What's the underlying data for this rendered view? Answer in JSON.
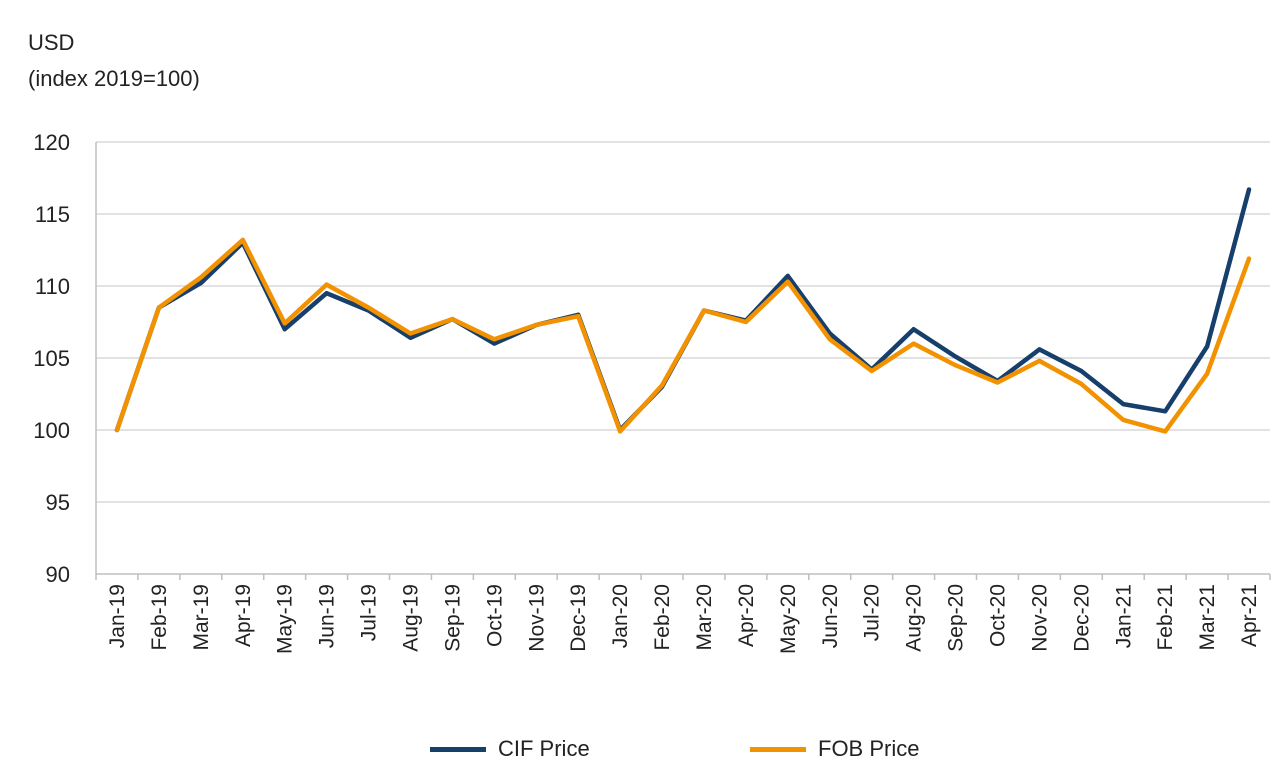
{
  "chart_data": {
    "type": "line",
    "ylabel_line1": "USD",
    "ylabel_line2": "(index 2019=100)",
    "ylim": [
      90,
      120
    ],
    "yticks": [
      90,
      95,
      100,
      105,
      110,
      115,
      120
    ],
    "grid": true,
    "legend": "bottom",
    "categories": [
      "Jan-19",
      "Feb-19",
      "Mar-19",
      "Apr-19",
      "May-19",
      "Jun-19",
      "Jul-19",
      "Aug-19",
      "Sep-19",
      "Oct-19",
      "Nov-19",
      "Dec-19",
      "Jan-20",
      "Feb-20",
      "Mar-20",
      "Apr-20",
      "May-20",
      "Jun-20",
      "Jul-20",
      "Aug-20",
      "Sep-20",
      "Oct-20",
      "Nov-20",
      "Dec-20",
      "Jan-21",
      "Feb-21",
      "Mar-21",
      "Apr-21"
    ],
    "series": [
      {
        "name": "CIF Price",
        "color": "#173f6b",
        "values": [
          100,
          108.5,
          110.2,
          113.0,
          107.0,
          109.5,
          108.3,
          106.4,
          107.7,
          106.0,
          107.3,
          108.0,
          100.0,
          103.0,
          108.3,
          107.6,
          110.7,
          106.7,
          104.2,
          107.0,
          105.1,
          103.4,
          105.6,
          104.1,
          101.8,
          101.3,
          105.8,
          116.7
        ]
      },
      {
        "name": "FOB Price",
        "color": "#f39200",
        "values": [
          100,
          108.5,
          110.6,
          113.2,
          107.4,
          110.1,
          108.5,
          106.7,
          107.7,
          106.3,
          107.3,
          107.9,
          99.9,
          103.1,
          108.3,
          107.5,
          110.3,
          106.3,
          104.1,
          106.0,
          104.5,
          103.3,
          104.8,
          103.2,
          100.7,
          99.9,
          103.9,
          111.9
        ]
      }
    ]
  }
}
